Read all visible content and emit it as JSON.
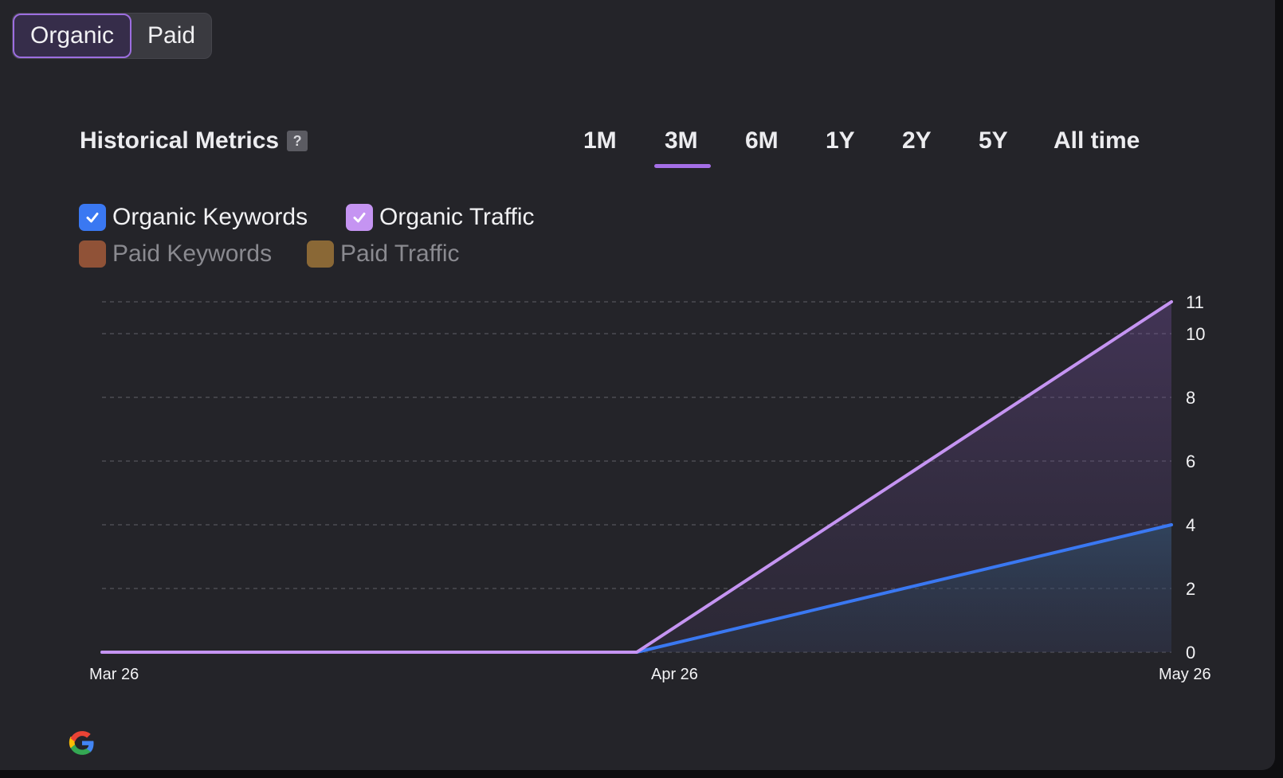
{
  "toggle": {
    "options": [
      {
        "label": "Organic",
        "active": true
      },
      {
        "label": "Paid",
        "active": false
      }
    ]
  },
  "header": {
    "title": "Historical Metrics",
    "help_icon": "question-icon",
    "help_label": "?",
    "periods": [
      "1M",
      "3M",
      "6M",
      "1Y",
      "2Y",
      "5Y",
      "All time"
    ],
    "selected_period": "3M"
  },
  "legend": [
    {
      "label": "Organic Keywords",
      "checked": true,
      "color": "#3a78f2"
    },
    {
      "label": "Organic Traffic",
      "checked": true,
      "color": "#c594f2"
    },
    {
      "label": "Paid Keywords",
      "checked": false,
      "color": "#a35a3a"
    },
    {
      "label": "Paid Traffic",
      "checked": false,
      "color": "#9c7438"
    }
  ],
  "chart_data": {
    "type": "area",
    "x": [
      "Mar 26",
      "Apr 26",
      "May 26"
    ],
    "x_ticks": [
      "Mar 26",
      "Apr 26",
      "May 26"
    ],
    "y_ticks": [
      0,
      2,
      4,
      6,
      8,
      10,
      11
    ],
    "ylim": [
      0,
      11
    ],
    "y_axis_side": "right",
    "grid": true,
    "grid_style": "dashed",
    "series": [
      {
        "name": "Organic Traffic",
        "values": [
          0,
          0,
          11
        ],
        "color": "#c594f2"
      },
      {
        "name": "Organic Keywords",
        "values": [
          0,
          0,
          4
        ],
        "color": "#3a78f2"
      }
    ]
  },
  "footer": {
    "icon": "google-icon"
  }
}
